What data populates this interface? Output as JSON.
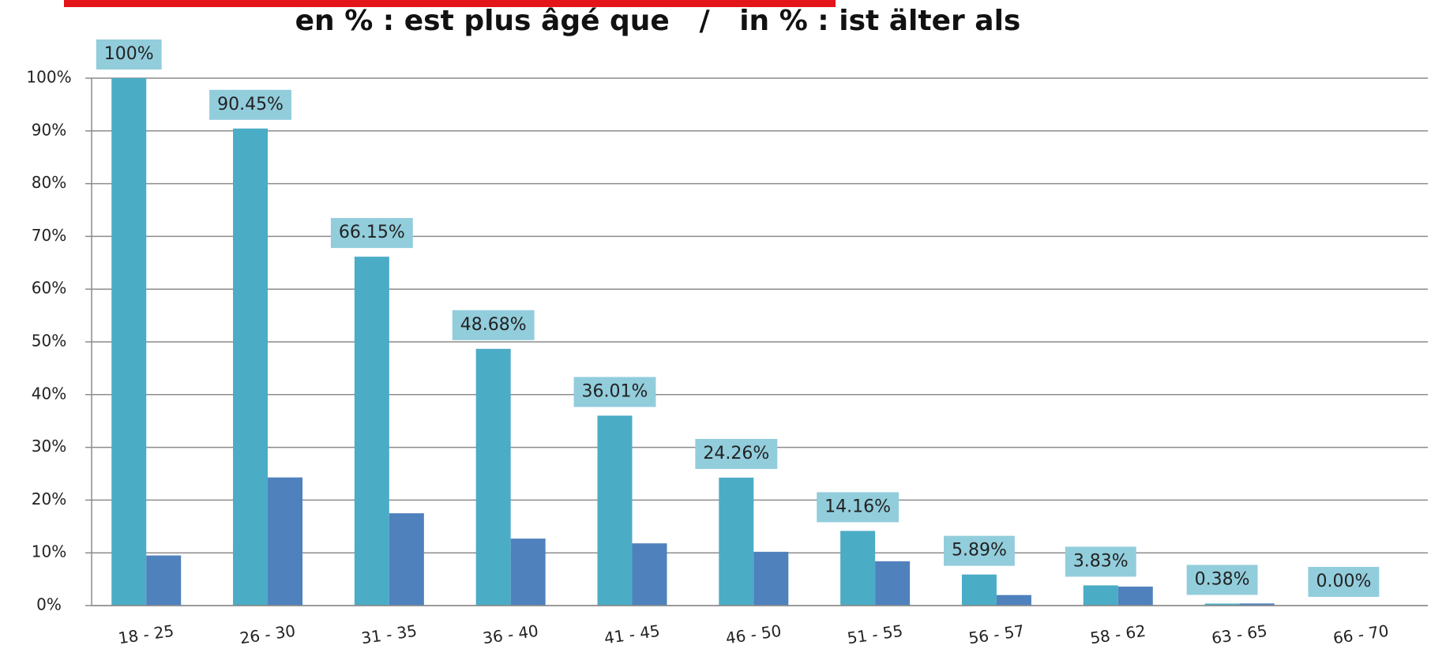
{
  "chart_data": {
    "type": "bar",
    "title": "en % : est plus âgé que   /   in % : ist älter als",
    "categories": [
      "18 - 25",
      "26 - 30",
      "31 - 35",
      "36 - 40",
      "41 - 45",
      "46 - 50",
      "51 - 55",
      "56 - 57",
      "58 - 62",
      "63 - 65",
      "66 - 70"
    ],
    "series": [
      {
        "color": "#4bacc6",
        "values": [
          100,
          90.45,
          66.15,
          48.68,
          36.01,
          24.26,
          14.16,
          5.89,
          3.83,
          0.38,
          0.0
        ],
        "value_labels": [
          "100%",
          "90.45%",
          "66.15%",
          "48.68%",
          "36.01%",
          "24.26%",
          "14.16%",
          "5.89%",
          "3.83%",
          "0.38%",
          "0.00%"
        ]
      },
      {
        "color": "#4f81bd",
        "values": [
          9.5,
          24.3,
          17.5,
          12.7,
          11.8,
          10.2,
          8.4,
          2.0,
          3.6,
          0.4,
          0
        ]
      }
    ],
    "ylim": [
      0,
      100
    ],
    "yticks": [
      {
        "value": 0,
        "label": "0%"
      },
      {
        "value": 10,
        "label": "10%"
      },
      {
        "value": 20,
        "label": "20%"
      },
      {
        "value": 30,
        "label": "30%"
      },
      {
        "value": 40,
        "label": "40%"
      },
      {
        "value": 50,
        "label": "50%"
      },
      {
        "value": 60,
        "label": "60%"
      },
      {
        "value": 70,
        "label": "70%"
      },
      {
        "value": 80,
        "label": "80%"
      },
      {
        "value": 90,
        "label": "90%"
      },
      {
        "value": 100,
        "label": "100%"
      }
    ],
    "grid": true
  }
}
